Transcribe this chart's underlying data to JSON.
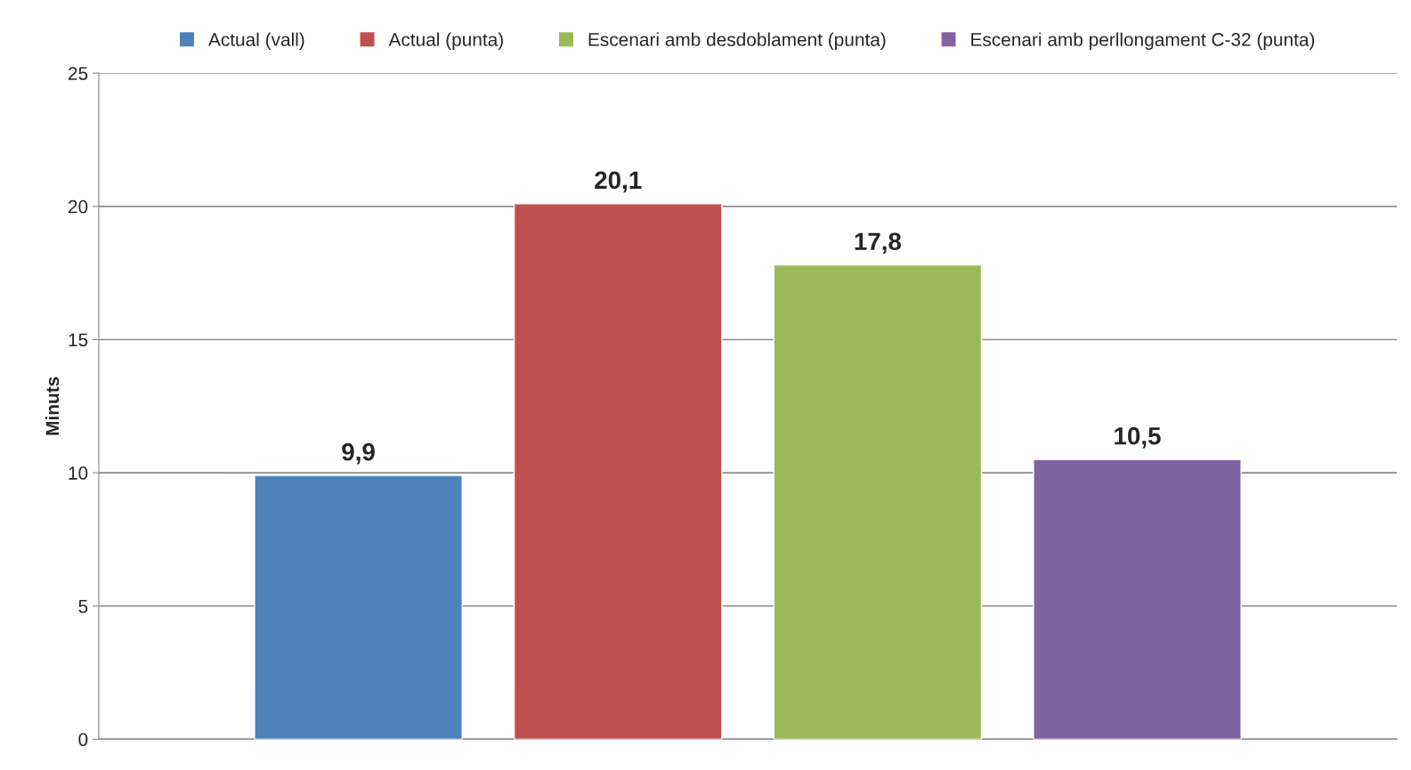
{
  "chart_data": {
    "type": "bar",
    "ylabel": "Minuts",
    "categories": [
      null
    ],
    "series": [
      {
        "name": "Actual (vall)",
        "color": "#4f81bd",
        "values": [
          9.9
        ],
        "value_labels": [
          "9,9"
        ]
      },
      {
        "name": "Actual (punta)",
        "color": "#c0504d",
        "values": [
          20.1
        ],
        "value_labels": [
          "20,1"
        ]
      },
      {
        "name": "Escenari amb desdoblament (punta)",
        "color": "#9bbb59",
        "values": [
          17.8
        ],
        "value_labels": [
          "17,8"
        ]
      },
      {
        "name": "Escenari amb perllongament C-32 (punta)",
        "color": "#8064a2",
        "values": [
          10.5
        ],
        "value_labels": [
          "10,5"
        ]
      }
    ],
    "ylim": [
      0,
      25
    ],
    "yticks": [
      0,
      5,
      10,
      15,
      20,
      25
    ],
    "grid": "y",
    "legend": "top"
  }
}
